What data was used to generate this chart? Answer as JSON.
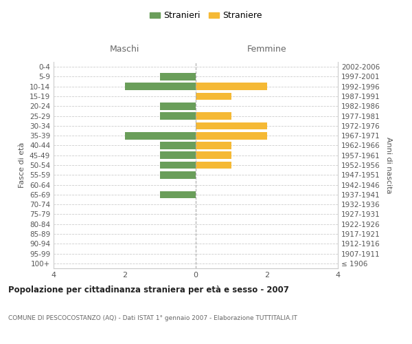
{
  "age_groups": [
    "100+",
    "95-99",
    "90-94",
    "85-89",
    "80-84",
    "75-79",
    "70-74",
    "65-69",
    "60-64",
    "55-59",
    "50-54",
    "45-49",
    "40-44",
    "35-39",
    "30-34",
    "25-29",
    "20-24",
    "15-19",
    "10-14",
    "5-9",
    "0-4"
  ],
  "birth_years": [
    "≤ 1906",
    "1907-1911",
    "1912-1916",
    "1917-1921",
    "1922-1926",
    "1927-1931",
    "1932-1936",
    "1937-1941",
    "1942-1946",
    "1947-1951",
    "1952-1956",
    "1957-1961",
    "1962-1966",
    "1967-1971",
    "1972-1976",
    "1977-1981",
    "1982-1986",
    "1987-1991",
    "1992-1996",
    "1997-2001",
    "2002-2006"
  ],
  "maschi": [
    0,
    0,
    0,
    0,
    0,
    0,
    0,
    1,
    0,
    1,
    1,
    1,
    1,
    2,
    0,
    1,
    1,
    0,
    2,
    1,
    0
  ],
  "femmine": [
    0,
    0,
    0,
    0,
    0,
    0,
    0,
    0,
    0,
    0,
    1,
    1,
    1,
    2,
    2,
    1,
    0,
    1,
    2,
    0,
    0
  ],
  "maschi_color": "#6a9e5a",
  "femmine_color": "#f5b935",
  "xlim": [
    -4,
    4
  ],
  "xticks": [
    -4,
    -2,
    0,
    2,
    4
  ],
  "xticklabels": [
    "4",
    "2",
    "0",
    "2",
    "4"
  ],
  "title": "Popolazione per cittadinanza straniera per età e sesso - 2007",
  "subtitle": "COMUNE DI PESCOCOSTANZO (AQ) - Dati ISTAT 1° gennaio 2007 - Elaborazione TUTTITALIA.IT",
  "ylabel_left": "Fasce di età",
  "ylabel_right": "Anni di nascita",
  "maschi_label": "Stranieri",
  "femmine_label": "Straniere",
  "maschi_header": "Maschi",
  "femmine_header": "Femmine",
  "background_color": "#ffffff",
  "grid_color": "#cccccc",
  "bar_height": 0.75
}
